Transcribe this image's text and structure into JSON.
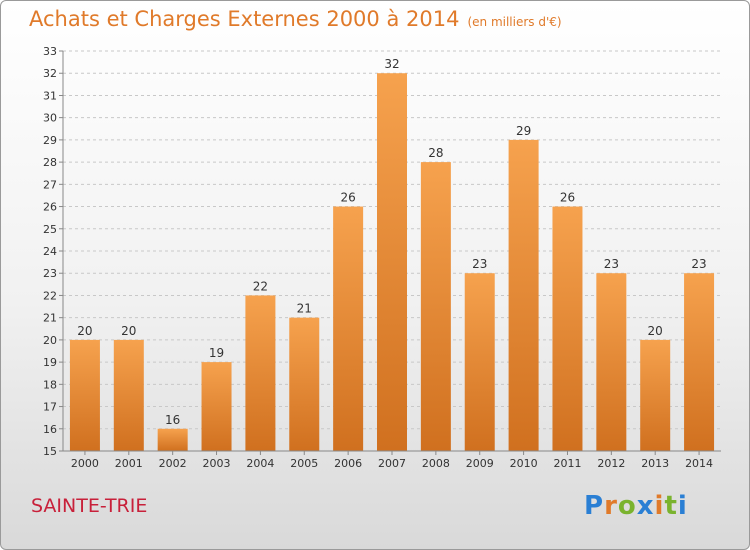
{
  "header": {
    "title": "Achats et Charges Externes 2000 à 2014",
    "subtitle": "(en milliers d'€)"
  },
  "footer": {
    "commune": "SAINTE-TRIE",
    "logo_letters": [
      {
        "ch": "P",
        "color": "#2a7fd4"
      },
      {
        "ch": "r",
        "color": "#e07a2a"
      },
      {
        "ch": "o",
        "color": "#7ab32e"
      },
      {
        "ch": "x",
        "color": "#2a7fd4"
      },
      {
        "ch": "i",
        "color": "#e07a2a"
      },
      {
        "ch": "t",
        "color": "#7ab32e"
      },
      {
        "ch": "i",
        "color": "#2a7fd4"
      }
    ]
  },
  "chart_data": {
    "type": "bar",
    "categories": [
      "2000",
      "2001",
      "2002",
      "2003",
      "2004",
      "2005",
      "2006",
      "2007",
      "2008",
      "2009",
      "2010",
      "2011",
      "2012",
      "2013",
      "2014"
    ],
    "values": [
      20,
      20,
      16,
      19,
      22,
      21,
      26,
      32,
      28,
      23,
      29,
      26,
      23,
      20,
      23
    ],
    "ylim": [
      15,
      33
    ],
    "yticks": [
      15,
      16,
      17,
      18,
      19,
      20,
      21,
      22,
      23,
      24,
      25,
      26,
      27,
      28,
      29,
      30,
      31,
      32,
      33
    ],
    "grid": true,
    "bar_color_light": "#f6a24e",
    "bar_color_dark": "#d0701f"
  }
}
